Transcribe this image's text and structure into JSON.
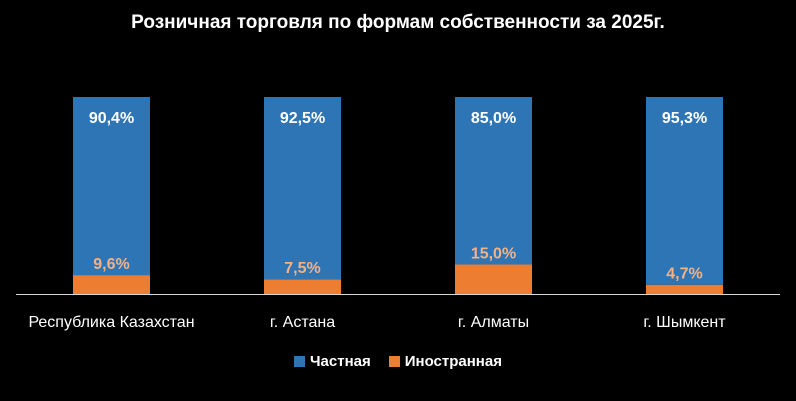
{
  "chart_data": {
    "type": "bar",
    "stacked": true,
    "title": "Розничная торговля по формам собственности за 2025г.",
    "categories": [
      "Республика Казахстан",
      "г. Астана",
      "г. Алматы",
      "г. Шымкент"
    ],
    "series": [
      {
        "name": "Частная",
        "values": [
          90.4,
          92.5,
          85.0,
          95.3
        ],
        "labels": [
          "90,4%",
          "92,5%",
          "85,0%",
          "95,3%"
        ],
        "color": "#2e75b6"
      },
      {
        "name": "Иностранная",
        "values": [
          9.6,
          7.5,
          15.0,
          4.7
        ],
        "labels": [
          "9,6%",
          "7,5%",
          "15,0%",
          "4,7%"
        ],
        "color": "#ed7d31"
      }
    ],
    "ylim": [
      0,
      100
    ],
    "grid": false,
    "legend": "bottom",
    "colors": {
      "background": "#000000",
      "private_label": "#ffffff",
      "foreign_label": "#f4b183"
    }
  }
}
